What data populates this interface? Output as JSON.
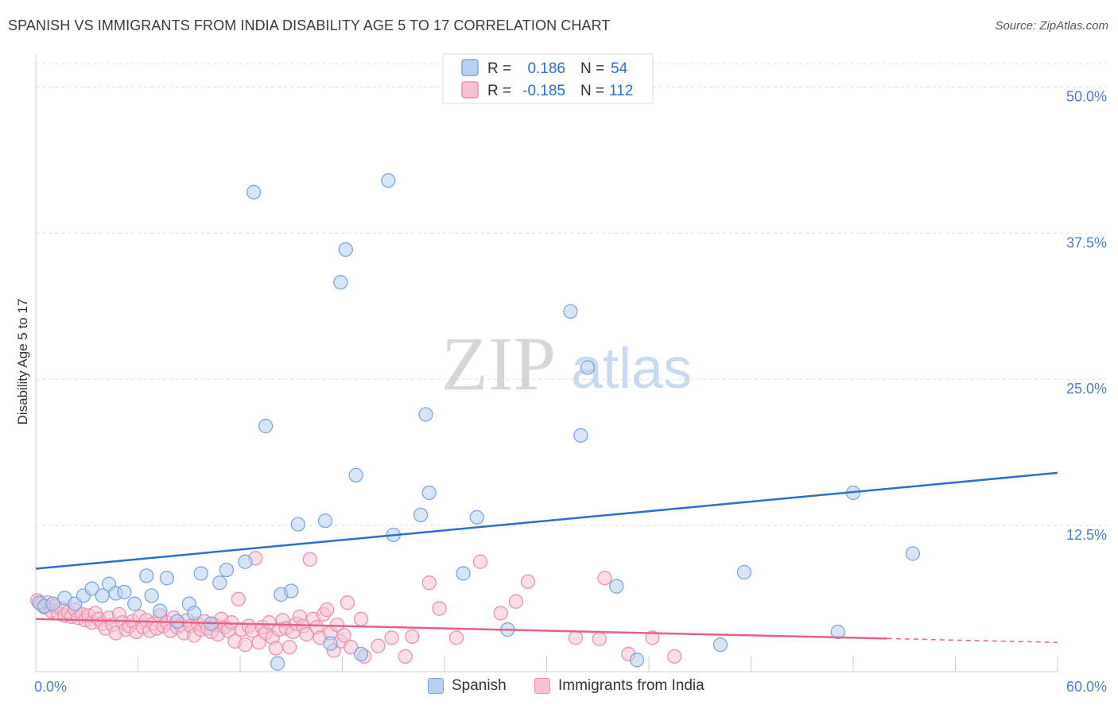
{
  "header": {
    "title": "SPANISH VS IMMIGRANTS FROM INDIA DISABILITY AGE 5 TO 17 CORRELATION CHART",
    "source": "Source: ZipAtlas.com"
  },
  "watermark": {
    "zip": "ZIP",
    "atlas": "atlas"
  },
  "colors": {
    "blue_fill": "#b8d0f0",
    "blue_stroke": "#7aa7e0",
    "blue_line": "#2a6fce",
    "pink_fill": "#f7c3d3",
    "pink_stroke": "#ee8fae",
    "pink_line": "#e8608a",
    "tick_label": "#4a7fd0"
  },
  "legend_top": {
    "rows": [
      {
        "r_label": "R =",
        "r_value": "0.186",
        "n_label": "N =",
        "n_value": "54"
      },
      {
        "r_label": "R =",
        "r_value": "-0.185",
        "n_label": "N =",
        "n_value": "112"
      }
    ]
  },
  "legend_bottom": {
    "items": [
      "Spanish",
      "Immigrants from India"
    ]
  },
  "chart_data": {
    "type": "scatter",
    "title": "SPANISH VS IMMIGRANTS FROM INDIA DISABILITY AGE 5 TO 17 CORRELATION CHART",
    "xlabel": "",
    "ylabel": "Disability Age 5 to 17",
    "xlim": [
      0,
      60
    ],
    "ylim": [
      0,
      52
    ],
    "x_tick_labels": {
      "min": "0.0%",
      "max": "60.0%"
    },
    "y_ticks": [
      12.5,
      25,
      37.5,
      50
    ],
    "y_tick_labels": [
      "12.5%",
      "25.0%",
      "37.5%",
      "50.0%"
    ],
    "grid": true,
    "legend_position": "top-center",
    "series": [
      {
        "name": "Spanish",
        "r": 0.186,
        "n": 54,
        "trend": {
          "x": [
            0,
            60
          ],
          "y": [
            8.8,
            17.0
          ],
          "dashed_from": null
        },
        "points": [
          [
            0.2,
            5.9
          ],
          [
            0.5,
            5.6
          ],
          [
            1.0,
            5.8
          ],
          [
            1.7,
            6.3
          ],
          [
            2.3,
            5.8
          ],
          [
            2.8,
            6.5
          ],
          [
            3.3,
            7.1
          ],
          [
            3.9,
            6.5
          ],
          [
            4.3,
            7.5
          ],
          [
            4.7,
            6.7
          ],
          [
            5.2,
            6.8
          ],
          [
            5.8,
            5.8
          ],
          [
            6.5,
            8.2
          ],
          [
            6.8,
            6.5
          ],
          [
            7.3,
            5.2
          ],
          [
            7.7,
            8.0
          ],
          [
            8.3,
            4.3
          ],
          [
            9.0,
            5.8
          ],
          [
            9.3,
            5.0
          ],
          [
            9.7,
            8.4
          ],
          [
            10.3,
            4.1
          ],
          [
            10.8,
            7.6
          ],
          [
            11.2,
            8.7
          ],
          [
            12.3,
            9.4
          ],
          [
            12.8,
            41.0
          ],
          [
            13.5,
            21.0
          ],
          [
            14.2,
            0.7
          ],
          [
            14.4,
            6.6
          ],
          [
            15.0,
            6.9
          ],
          [
            15.4,
            12.6
          ],
          [
            17.0,
            12.9
          ],
          [
            17.3,
            2.4
          ],
          [
            17.9,
            33.3
          ],
          [
            18.2,
            36.1
          ],
          [
            18.8,
            16.8
          ],
          [
            19.1,
            1.5
          ],
          [
            20.7,
            42.0
          ],
          [
            21.0,
            11.7
          ],
          [
            22.6,
            13.4
          ],
          [
            22.9,
            22.0
          ],
          [
            23.1,
            15.3
          ],
          [
            25.1,
            8.4
          ],
          [
            25.9,
            13.2
          ],
          [
            27.7,
            3.6
          ],
          [
            31.4,
            30.8
          ],
          [
            32.0,
            20.2
          ],
          [
            32.4,
            26.0
          ],
          [
            34.1,
            7.3
          ],
          [
            35.3,
            1.0
          ],
          [
            40.2,
            2.3
          ],
          [
            41.6,
            8.5
          ],
          [
            47.1,
            3.4
          ],
          [
            48.0,
            15.3
          ],
          [
            51.5,
            10.1
          ]
        ]
      },
      {
        "name": "Immigrants from India",
        "r": -0.185,
        "n": 112,
        "trend": {
          "x": [
            0,
            60
          ],
          "y": [
            4.5,
            2.5
          ],
          "dashed_from": 50
        },
        "points": [
          [
            0.1,
            6.1
          ],
          [
            0.3,
            5.8
          ],
          [
            0.5,
            5.5
          ],
          [
            0.7,
            5.9
          ],
          [
            0.9,
            5.2
          ],
          [
            1.1,
            5.6
          ],
          [
            1.3,
            5.0
          ],
          [
            1.5,
            5.4
          ],
          [
            1.7,
            4.8
          ],
          [
            1.9,
            5.1
          ],
          [
            2.1,
            4.7
          ],
          [
            2.3,
            5.3
          ],
          [
            2.5,
            4.6
          ],
          [
            2.7,
            4.9
          ],
          [
            2.9,
            4.4
          ],
          [
            3.1,
            4.8
          ],
          [
            3.3,
            4.2
          ],
          [
            3.5,
            5.0
          ],
          [
            3.7,
            4.5
          ],
          [
            3.9,
            4.1
          ],
          [
            4.1,
            3.7
          ],
          [
            4.3,
            4.6
          ],
          [
            4.5,
            4.0
          ],
          [
            4.7,
            3.3
          ],
          [
            4.9,
            4.9
          ],
          [
            5.1,
            4.2
          ],
          [
            5.3,
            3.6
          ],
          [
            5.5,
            3.9
          ],
          [
            5.7,
            4.3
          ],
          [
            5.9,
            3.4
          ],
          [
            6.1,
            4.7
          ],
          [
            6.3,
            3.8
          ],
          [
            6.5,
            4.4
          ],
          [
            6.7,
            3.5
          ],
          [
            6.9,
            4.1
          ],
          [
            7.1,
            3.7
          ],
          [
            7.3,
            4.8
          ],
          [
            7.5,
            3.9
          ],
          [
            7.7,
            4.2
          ],
          [
            7.9,
            3.5
          ],
          [
            8.1,
            4.6
          ],
          [
            8.3,
            3.8
          ],
          [
            8.5,
            4.0
          ],
          [
            8.7,
            3.3
          ],
          [
            8.9,
            4.4
          ],
          [
            9.1,
            3.9
          ],
          [
            9.3,
            3.1
          ],
          [
            9.5,
            4.1
          ],
          [
            9.7,
            3.6
          ],
          [
            9.9,
            4.3
          ],
          [
            10.1,
            3.7
          ],
          [
            10.3,
            3.4
          ],
          [
            10.5,
            4.0
          ],
          [
            10.7,
            3.2
          ],
          [
            10.9,
            4.5
          ],
          [
            11.1,
            3.8
          ],
          [
            11.3,
            3.5
          ],
          [
            11.5,
            4.2
          ],
          [
            11.7,
            2.6
          ],
          [
            11.9,
            6.2
          ],
          [
            12.1,
            3.6
          ],
          [
            12.3,
            2.3
          ],
          [
            12.5,
            3.9
          ],
          [
            12.7,
            3.5
          ],
          [
            12.9,
            9.7
          ],
          [
            13.1,
            2.5
          ],
          [
            13.3,
            3.8
          ],
          [
            13.5,
            3.3
          ],
          [
            13.7,
            4.2
          ],
          [
            13.9,
            2.9
          ],
          [
            14.1,
            2.0
          ],
          [
            14.3,
            3.6
          ],
          [
            14.5,
            4.4
          ],
          [
            14.7,
            3.7
          ],
          [
            14.9,
            2.1
          ],
          [
            15.1,
            3.4
          ],
          [
            15.3,
            4.1
          ],
          [
            15.5,
            4.7
          ],
          [
            15.7,
            3.9
          ],
          [
            15.9,
            3.2
          ],
          [
            16.1,
            9.6
          ],
          [
            16.3,
            4.5
          ],
          [
            16.5,
            3.8
          ],
          [
            16.7,
            2.9
          ],
          [
            16.9,
            4.9
          ],
          [
            17.1,
            5.3
          ],
          [
            17.3,
            3.3
          ],
          [
            17.5,
            1.8
          ],
          [
            17.7,
            4.0
          ],
          [
            17.9,
            2.6
          ],
          [
            18.1,
            3.1
          ],
          [
            18.3,
            5.9
          ],
          [
            18.5,
            2.1
          ],
          [
            19.1,
            4.5
          ],
          [
            19.3,
            1.3
          ],
          [
            20.1,
            2.2
          ],
          [
            20.9,
            2.9
          ],
          [
            21.7,
            1.3
          ],
          [
            22.1,
            3.0
          ],
          [
            23.1,
            7.6
          ],
          [
            23.7,
            5.4
          ],
          [
            24.7,
            2.9
          ],
          [
            26.1,
            9.4
          ],
          [
            27.3,
            5.0
          ],
          [
            28.2,
            6.0
          ],
          [
            28.9,
            7.7
          ],
          [
            31.7,
            2.9
          ],
          [
            33.1,
            2.8
          ],
          [
            33.4,
            8.0
          ],
          [
            34.8,
            1.5
          ],
          [
            36.2,
            2.9
          ],
          [
            37.5,
            1.3
          ]
        ]
      }
    ]
  }
}
